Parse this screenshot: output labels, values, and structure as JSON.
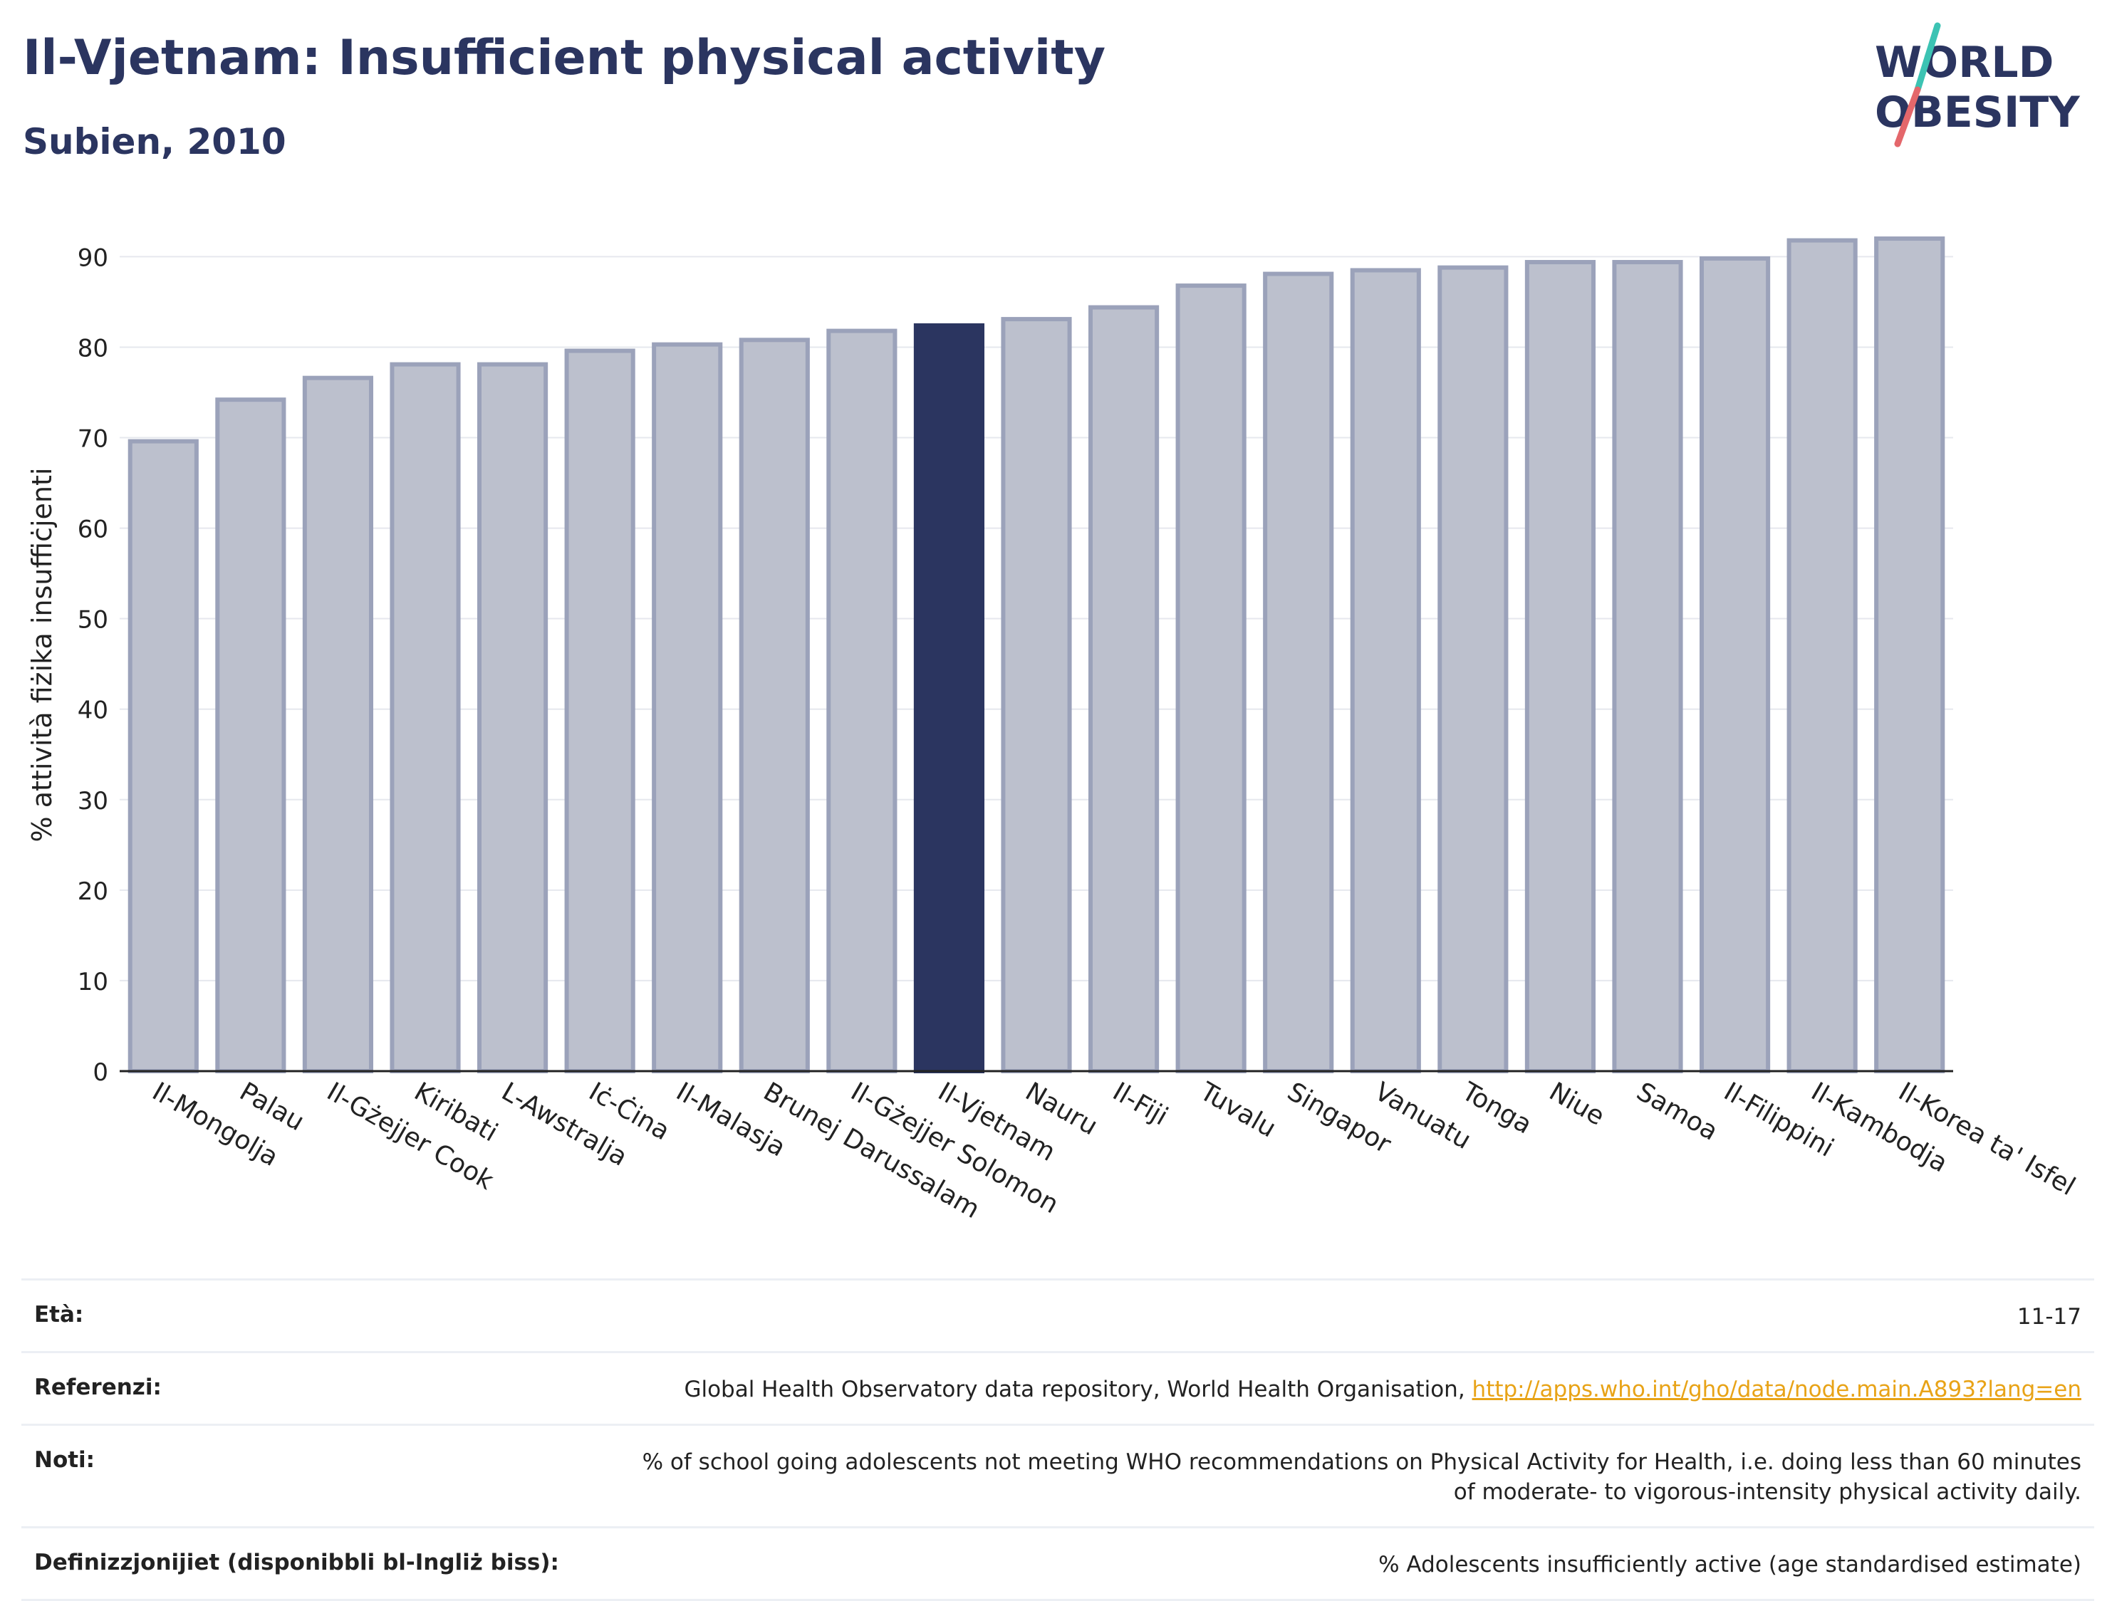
{
  "header": {
    "title": "Il-Vjetnam: Insufficient physical activity",
    "subtitle": "Subien, 2010"
  },
  "logo": {
    "line1": "WORLD",
    "line2": "OBESITY",
    "slash_colors": [
      "#3cc3b3",
      "#e4676b"
    ],
    "text_color": "#2b3560"
  },
  "chart_data": {
    "type": "bar",
    "ylabel": "% attività fiżika insuffiċjenti",
    "ylim": [
      0,
      92
    ],
    "yticks": [
      0,
      10,
      20,
      30,
      40,
      50,
      60,
      70,
      80,
      90
    ],
    "grid": true,
    "highlight": "Il-Vjetnam",
    "colors": {
      "bar": "#bcc0cd",
      "bar_edge": "#9ba2ba",
      "highlight": "#2b3560"
    },
    "categories": [
      "Il-Mongolja",
      "Palau",
      "Il-Gżejjer Cook",
      "Kiribati",
      "L-Awstralja",
      "Iċ-Ċina",
      "Il-Malasja",
      "Brunej Darussalam",
      "Il-Gżejjer Solomon",
      "Il-Vjetnam",
      "Nauru",
      "Il-Fiji",
      "Tuvalu",
      "Singapor",
      "Vanuatu",
      "Tonga",
      "Niue",
      "Samoa",
      "Il-Filippini",
      "Il-Kambodja",
      "Il-Korea ta' Isfel"
    ],
    "values": [
      69.6,
      74.2,
      76.6,
      78.1,
      78.1,
      79.6,
      80.3,
      80.8,
      81.8,
      82.4,
      83.1,
      84.4,
      86.8,
      88.1,
      88.5,
      88.8,
      89.4,
      89.4,
      89.8,
      91.8,
      92.0
    ]
  },
  "footer": {
    "rows": [
      {
        "label": "Età:",
        "value": "11-17"
      },
      {
        "label": "Referenzi:",
        "value": "Global Health Observatory data repository, World Health Organisation, ",
        "link": "http://apps.who.int/gho/data/node.main.A893?lang=en"
      },
      {
        "label": "Noti:",
        "value": "% of school going adolescents not meeting WHO recommendations on Physical Activity for Health, i.e. doing less than 60 minutes of moderate- to vigorous-intensity physical activity daily."
      },
      {
        "label": "Definizzjonijiet (disponibbli bl-Ingliż biss):",
        "value": "% Adolescents insufficiently active (age standardised estimate)"
      }
    ]
  }
}
